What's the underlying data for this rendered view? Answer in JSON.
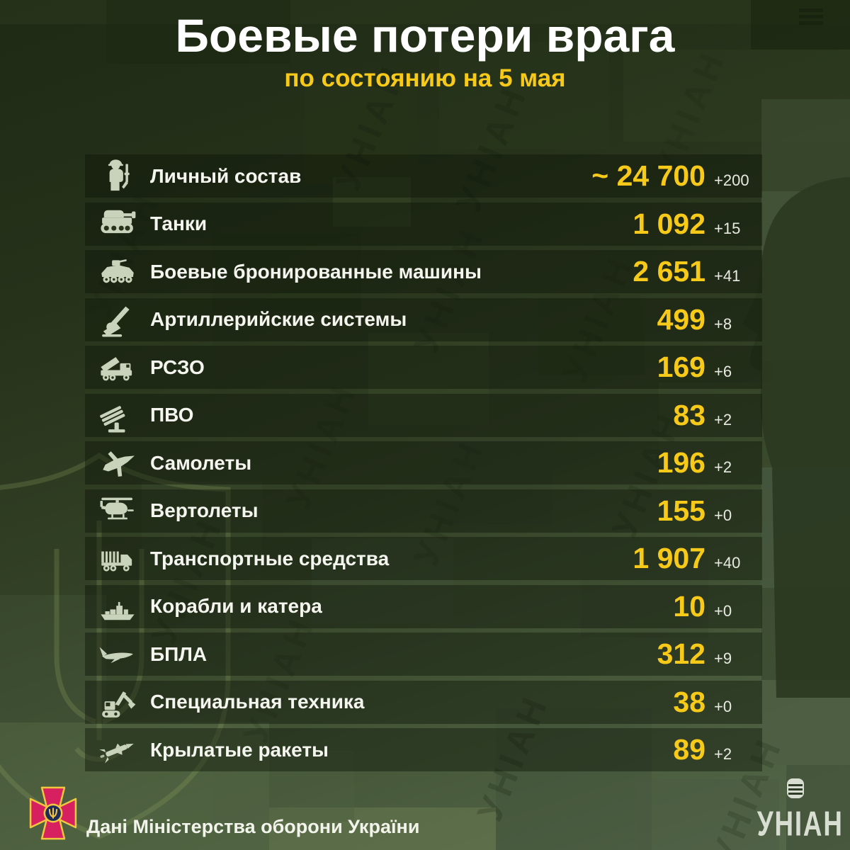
{
  "header": {
    "title": "Боевые потери врага",
    "subtitle": "по состоянию на 5 мая"
  },
  "rows": [
    {
      "icon": "soldier-icon",
      "label": "Личный состав",
      "value": "~ 24 700",
      "delta": "+200"
    },
    {
      "icon": "tank-icon",
      "label": "Танки",
      "value": "1 092",
      "delta": "+15"
    },
    {
      "icon": "apc-icon",
      "label": "Боевые бронированные машины",
      "value": "2 651",
      "delta": "+41"
    },
    {
      "icon": "artillery-icon",
      "label": "Артиллерийские системы",
      "value": "499",
      "delta": "+8"
    },
    {
      "icon": "mlrs-icon",
      "label": "РСЗО",
      "value": "169",
      "delta": "+6"
    },
    {
      "icon": "air-defense-icon",
      "label": "ПВО",
      "value": "83",
      "delta": "+2"
    },
    {
      "icon": "jet-icon",
      "label": "Самолеты",
      "value": "196",
      "delta": "+2"
    },
    {
      "icon": "helicopter-icon",
      "label": "Вертолеты",
      "value": "155",
      "delta": "+0"
    },
    {
      "icon": "truck-icon",
      "label": "Транспортные средства",
      "value": "1 907",
      "delta": "+40"
    },
    {
      "icon": "ship-icon",
      "label": "Корабли и катера",
      "value": "10",
      "delta": "+0"
    },
    {
      "icon": "drone-icon",
      "label": "БПЛА",
      "value": "312",
      "delta": "+9"
    },
    {
      "icon": "excavator-icon",
      "label": "Специальная техника",
      "value": "38",
      "delta": "+0"
    },
    {
      "icon": "missile-icon",
      "label": "Крылатые ракеты",
      "value": "89",
      "delta": "+2"
    }
  ],
  "footer": {
    "source": "Дані Міністерства оборони України",
    "brand": "УНІАН"
  },
  "watermark": {
    "text": "УНІАН"
  },
  "colors": {
    "accent_yellow": "#f7c919",
    "title_white": "#ffffff",
    "label_white": "#f3f5ee",
    "delta_gray": "#e8eae2",
    "icon_sage": "#c9d3bc",
    "row_bg": "rgba(13,19,7,0.42)",
    "bg_dark_green": "#1f2a15",
    "bg_light_green": "#55684a",
    "emblem_crimson": "#d6205f",
    "emblem_gold": "#f2c63e",
    "emblem_blue": "#1d2a5a",
    "logo_gray": "#d9ded2"
  },
  "chart_data": {
    "type": "table",
    "title": "Боевые потери врага",
    "subtitle": "по состоянию на 5 мая",
    "categories": [
      "Личный состав",
      "Танки",
      "Боевые бронированные машины",
      "Артиллерийские системы",
      "РСЗО",
      "ПВО",
      "Самолеты",
      "Вертолеты",
      "Транспортные средства",
      "Корабли и катера",
      "БПЛА",
      "Специальная техника",
      "Крылатые ракеты"
    ],
    "values": [
      24700,
      1092,
      2651,
      499,
      169,
      83,
      196,
      155,
      1907,
      10,
      312,
      38,
      89
    ],
    "daily_change": [
      200,
      15,
      41,
      8,
      6,
      2,
      2,
      0,
      40,
      0,
      9,
      0,
      2
    ],
    "value_labels": [
      "~ 24 700",
      "1 092",
      "2 651",
      "499",
      "169",
      "83",
      "196",
      "155",
      "1 907",
      "10",
      "312",
      "38",
      "89"
    ],
    "delta_labels": [
      "+200",
      "+15",
      "+41",
      "+8",
      "+6",
      "+2",
      "+2",
      "+0",
      "+40",
      "+0",
      "+9",
      "+0",
      "+2"
    ],
    "approximate_flags": [
      true,
      false,
      false,
      false,
      false,
      false,
      false,
      false,
      false,
      false,
      false,
      false,
      false
    ],
    "source": "Дані Міністерства оборони України"
  }
}
